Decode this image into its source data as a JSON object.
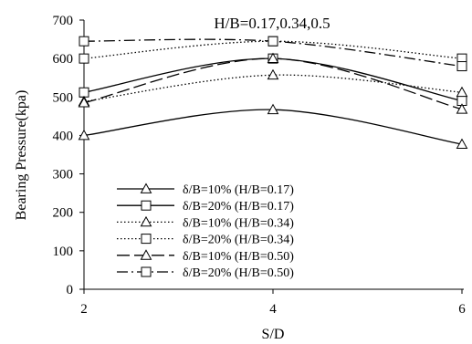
{
  "chart_data": {
    "type": "line",
    "annotation": "H/B=0.17,0.34,0.5",
    "xlabel": "S/D",
    "ylabel": "Bearing Pressure(kpa)",
    "xlim": [
      2,
      6
    ],
    "ylim": [
      0,
      700
    ],
    "x_ticks": [
      "2",
      "4",
      "6"
    ],
    "y_ticks": [
      "0",
      "100",
      "200",
      "300",
      "400",
      "500",
      "600",
      "700"
    ],
    "grid": false,
    "legend_position": "lower-left",
    "x": [
      2,
      4,
      6
    ],
    "series": [
      {
        "name": "δ/B=10% (H/B=0.17)",
        "values": [
          400,
          467,
          377
        ],
        "marker": "triangle",
        "line_style": "solid"
      },
      {
        "name": "δ/B=20% (H/B=0.17)",
        "values": [
          512,
          600,
          490
        ],
        "marker": "square",
        "line_style": "solid"
      },
      {
        "name": "δ/B=10% (H/B=0.34)",
        "values": [
          488,
          557,
          512
        ],
        "marker": "triangle",
        "line_style": "dotted"
      },
      {
        "name": "δ/B=20% (H/B=0.34)",
        "values": [
          600,
          645,
          600
        ],
        "marker": "square",
        "line_style": "dotted"
      },
      {
        "name": "δ/B=10% (H/B=0.50)",
        "values": [
          485,
          600,
          468
        ],
        "marker": "triangle",
        "line_style": "longdash"
      },
      {
        "name": "δ/B=20% (H/B=0.50)",
        "values": [
          645,
          645,
          580
        ],
        "marker": "square",
        "line_style": "dashdot"
      }
    ]
  }
}
